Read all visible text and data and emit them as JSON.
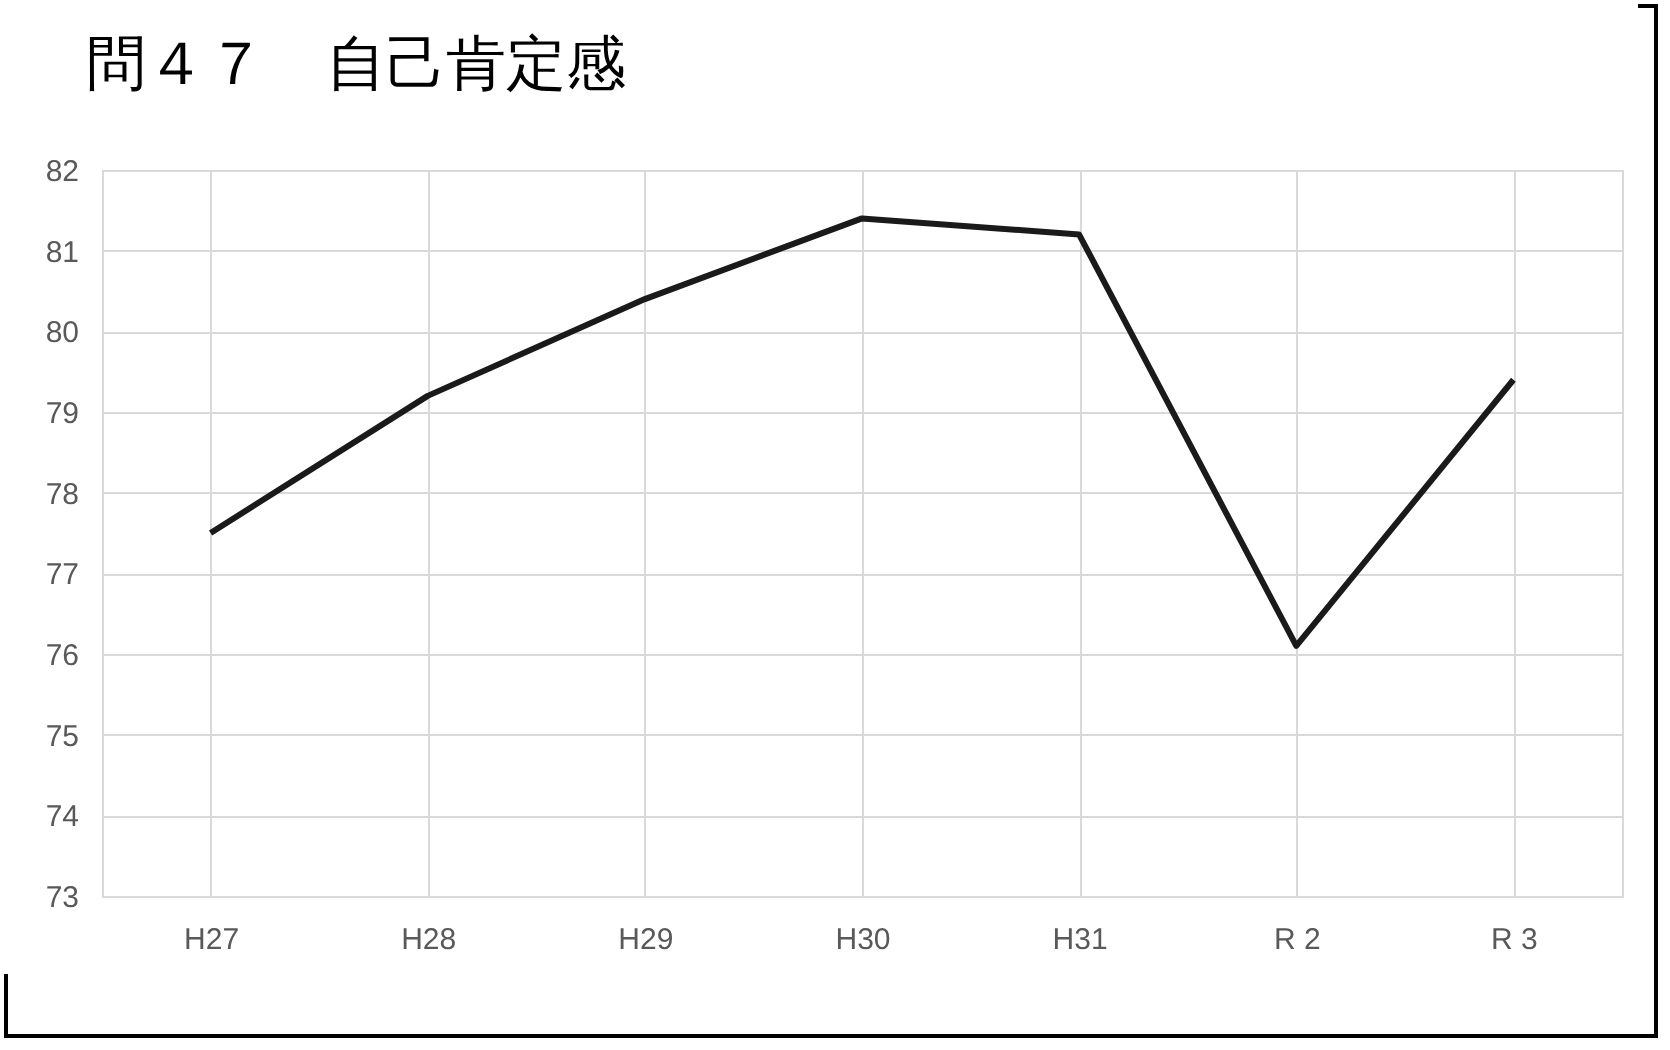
{
  "chart_data": {
    "type": "line",
    "title": "問４７　自己肯定感",
    "categories": [
      "H27",
      "H28",
      "H29",
      "H30",
      "H31",
      "R 2",
      "R 3"
    ],
    "series": [
      {
        "color": "#1a1a1a",
        "values": [
          77.5,
          79.2,
          80.4,
          81.4,
          81.2,
          76.1,
          79.4
        ]
      }
    ],
    "ylim": [
      73,
      82
    ],
    "yticks": [
      73,
      74,
      75,
      76,
      77,
      78,
      79,
      80,
      81,
      82
    ],
    "grid": true,
    "marker": "none",
    "line_style": "solid"
  }
}
